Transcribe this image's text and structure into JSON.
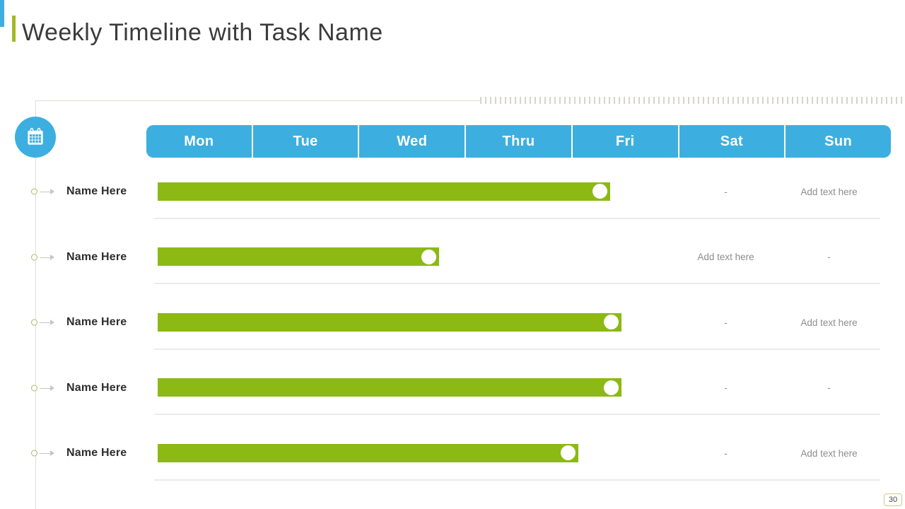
{
  "slide": {
    "title": "Weekly Timeline with Task Name",
    "page_number": "30"
  },
  "header": {
    "days": [
      "Mon",
      "Tue",
      "Wed",
      "Thru",
      "Fri",
      "Sat",
      "Sun"
    ]
  },
  "rows": [
    {
      "label": "Name Here",
      "sat": "-",
      "sun": "Add text here"
    },
    {
      "label": "Name Here",
      "sat": "Add text here",
      "sun": "-"
    },
    {
      "label": "Name Here",
      "sat": "-",
      "sun": "Add text here"
    },
    {
      "label": "Name Here",
      "sat": "-",
      "sun": "-"
    },
    {
      "label": "Name Here",
      "sat": "-",
      "sun": "Add text here"
    }
  ],
  "colors": {
    "accent_blue": "#3CAFE0",
    "accent_green": "#A4B827",
    "bar_green": "#8CB914",
    "muted_text": "#8D8D8D",
    "title_text": "#3B3B3B",
    "line_gray": "#DEDDD8"
  },
  "icons": {
    "calendar": "calendar-icon",
    "timeline_node": "circle-node-icon",
    "bar_endpoint": "white-circle-icon"
  },
  "chart_data": {
    "type": "bar",
    "subtype": "weekly-gantt-timeline",
    "title": "Weekly Timeline with Task Name",
    "x_ticks": [
      "Mon",
      "Tue",
      "Wed",
      "Thru",
      "Fri",
      "Sat",
      "Sun"
    ],
    "x_range_days": [
      0,
      7
    ],
    "categories": [
      "Name Here",
      "Name Here",
      "Name Here",
      "Name Here",
      "Name Here"
    ],
    "series": [
      {
        "name": "task-duration-days-from-monday",
        "start": [
          0,
          0,
          0,
          0,
          0
        ],
        "end": [
          4.36,
          2.75,
          4.47,
          4.47,
          4.06
        ]
      }
    ],
    "bar_color": "#8CB914",
    "endpoint_marker": "white-circle",
    "legend": "none",
    "grid": "off"
  }
}
